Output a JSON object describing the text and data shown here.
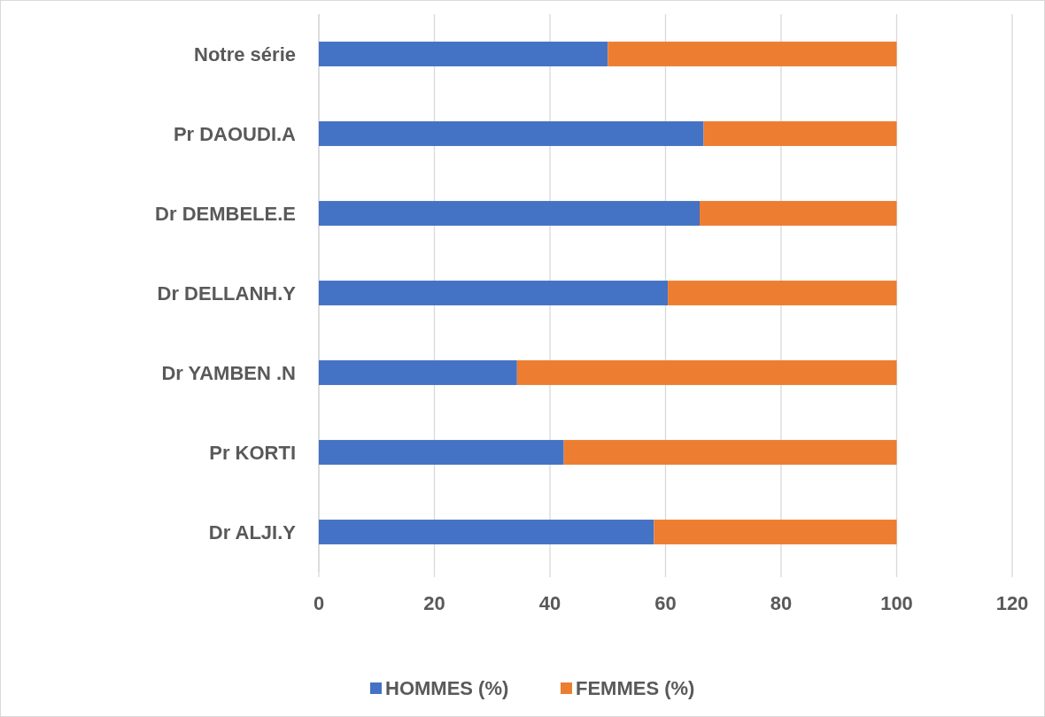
{
  "chart_data": {
    "type": "bar",
    "orientation": "horizontal",
    "stacked": true,
    "categories": [
      "Notre série",
      "Pr DAOUDI.A",
      "Dr DEMBELE.E",
      "Dr DELLANH.Y",
      "Dr YAMBEN .N",
      "Pr KORTI",
      "Dr ALJI.Y"
    ],
    "series": [
      {
        "name": "HOMMES (%)",
        "color": "#4472c4",
        "values": [
          50,
          66.6,
          65.9,
          60.4,
          34.3,
          42.4,
          58
        ]
      },
      {
        "name": "FEMMES (%)",
        "color": "#ed7d31",
        "values": [
          50,
          33.4,
          34.1,
          39.6,
          65.7,
          57.6,
          42
        ]
      }
    ],
    "xlim": [
      0,
      120
    ],
    "xticks": [
      0,
      20,
      40,
      60,
      80,
      100,
      120
    ],
    "grid": "x",
    "legend": "bottom"
  }
}
